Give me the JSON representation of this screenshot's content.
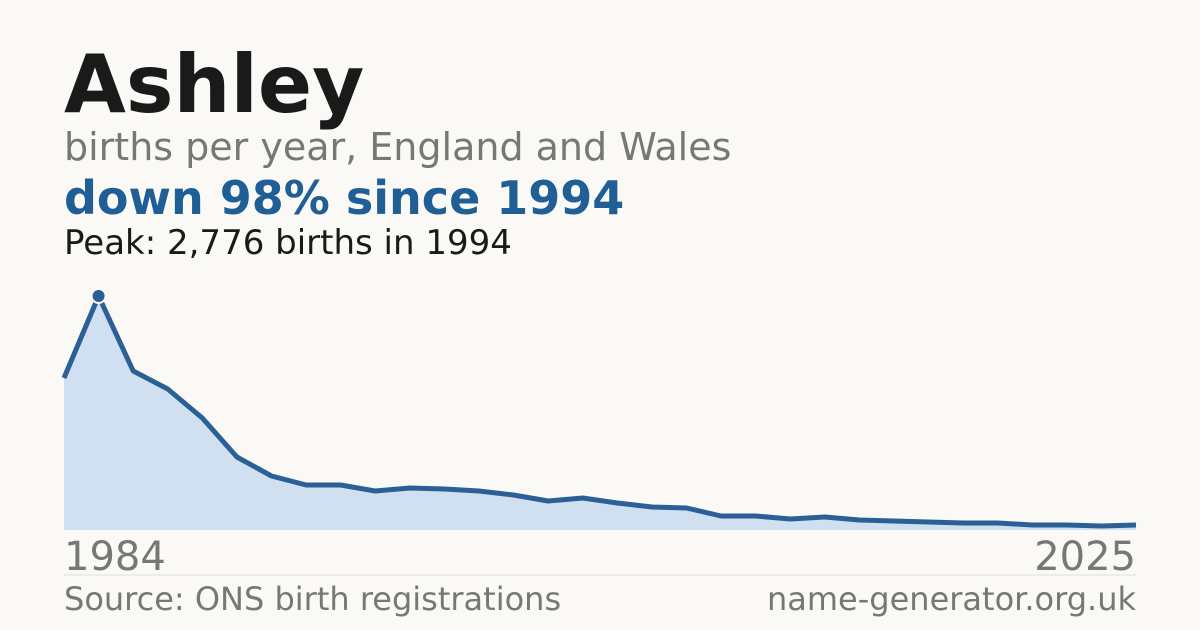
{
  "chart_data": {
    "type": "area",
    "title": "Ashley",
    "subtitle": "births per year, England and Wales",
    "headline": "down 98% since 1994",
    "annotation": "Peak: 2,776 births in 1994",
    "source": "Source: ONS birth registrations",
    "site": "name-generator.org.uk",
    "categories": [
      "1984",
      null,
      null,
      null,
      null,
      null,
      null,
      null,
      null,
      null,
      null,
      null,
      null,
      null,
      null,
      null,
      null,
      null,
      null,
      null,
      null,
      null,
      null,
      null,
      null,
      null,
      null,
      null,
      null,
      null,
      null,
      "2025"
    ],
    "values": [
      1803,
      2776,
      1886,
      1673,
      1329,
      866,
      641,
      534,
      534,
      463,
      498,
      486,
      463,
      415,
      344,
      380,
      320,
      273,
      261,
      166,
      166,
      130,
      154,
      119,
      107,
      95,
      83,
      83,
      59,
      59,
      47,
      59
    ],
    "color": "#2a6095",
    "fill": "#d0e0f0",
    "ylim": [
      0,
      2776
    ]
  }
}
